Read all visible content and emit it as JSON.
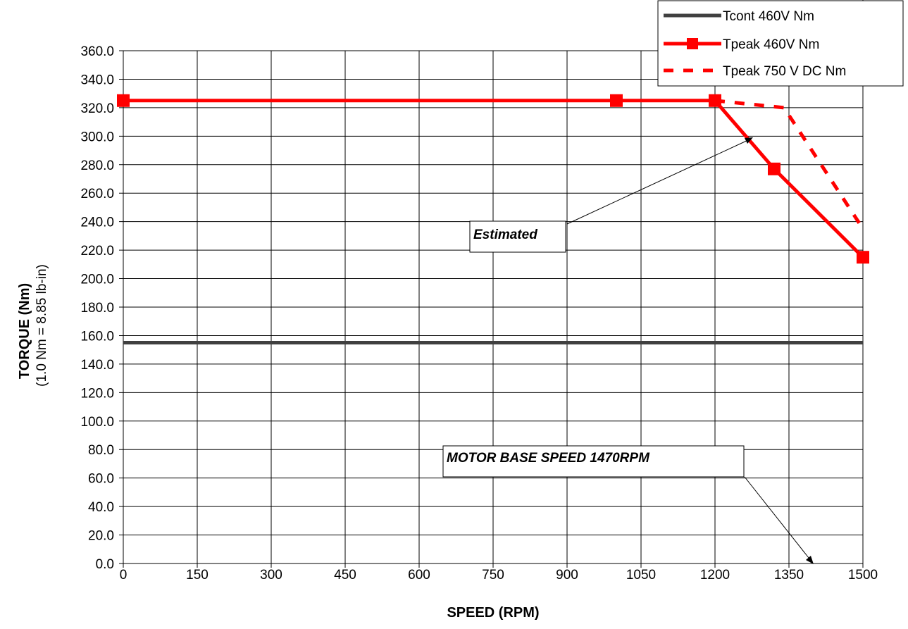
{
  "chart_data": {
    "type": "line",
    "xlabel": "SPEED (RPM)",
    "ylabel": "TORQUE (Nm)",
    "ylabel_sub": "(1.0 Nm = 8.85 lb-in)",
    "xlim": [
      0,
      1500
    ],
    "ylim": [
      0,
      360
    ],
    "x_ticks": [
      0,
      150,
      300,
      450,
      600,
      750,
      900,
      1050,
      1200,
      1350,
      1500
    ],
    "y_ticks": [
      "0.0",
      "20.0",
      "40.0",
      "60.0",
      "80.0",
      "100.0",
      "120.0",
      "140.0",
      "160.0",
      "180.0",
      "200.0",
      "220.0",
      "240.0",
      "260.0",
      "280.0",
      "300.0",
      "320.0",
      "340.0",
      "360.0"
    ],
    "grid": true,
    "legend_position": "top-right",
    "series": [
      {
        "name": "Tcont 460V Nm",
        "color": "#404040",
        "style": "solid",
        "marker": "none",
        "x": [
          0,
          1500
        ],
        "y": [
          155,
          155
        ]
      },
      {
        "name": "Tpeak 460V Nm",
        "color": "#ff0000",
        "style": "solid",
        "marker": "square",
        "x": [
          0,
          1000,
          1200,
          1320,
          1500
        ],
        "y": [
          325,
          325,
          325,
          277,
          215
        ]
      },
      {
        "name": "Tpeak 750 V DC Nm",
        "color": "#ff0000",
        "style": "dashed",
        "marker": "none",
        "x": [
          1200,
          1340,
          1500
        ],
        "y": [
          325,
          320,
          235
        ]
      }
    ],
    "reference_line": {
      "x": 1500,
      "style": "dotted"
    },
    "annotations": [
      {
        "text": "Estimated",
        "arrow_to": {
          "x": 1355,
          "y": 300
        }
      },
      {
        "text": "MOTOR BASE SPEED  1470RPM",
        "arrow_to": {
          "x": 1490,
          "y": 0
        }
      }
    ]
  }
}
